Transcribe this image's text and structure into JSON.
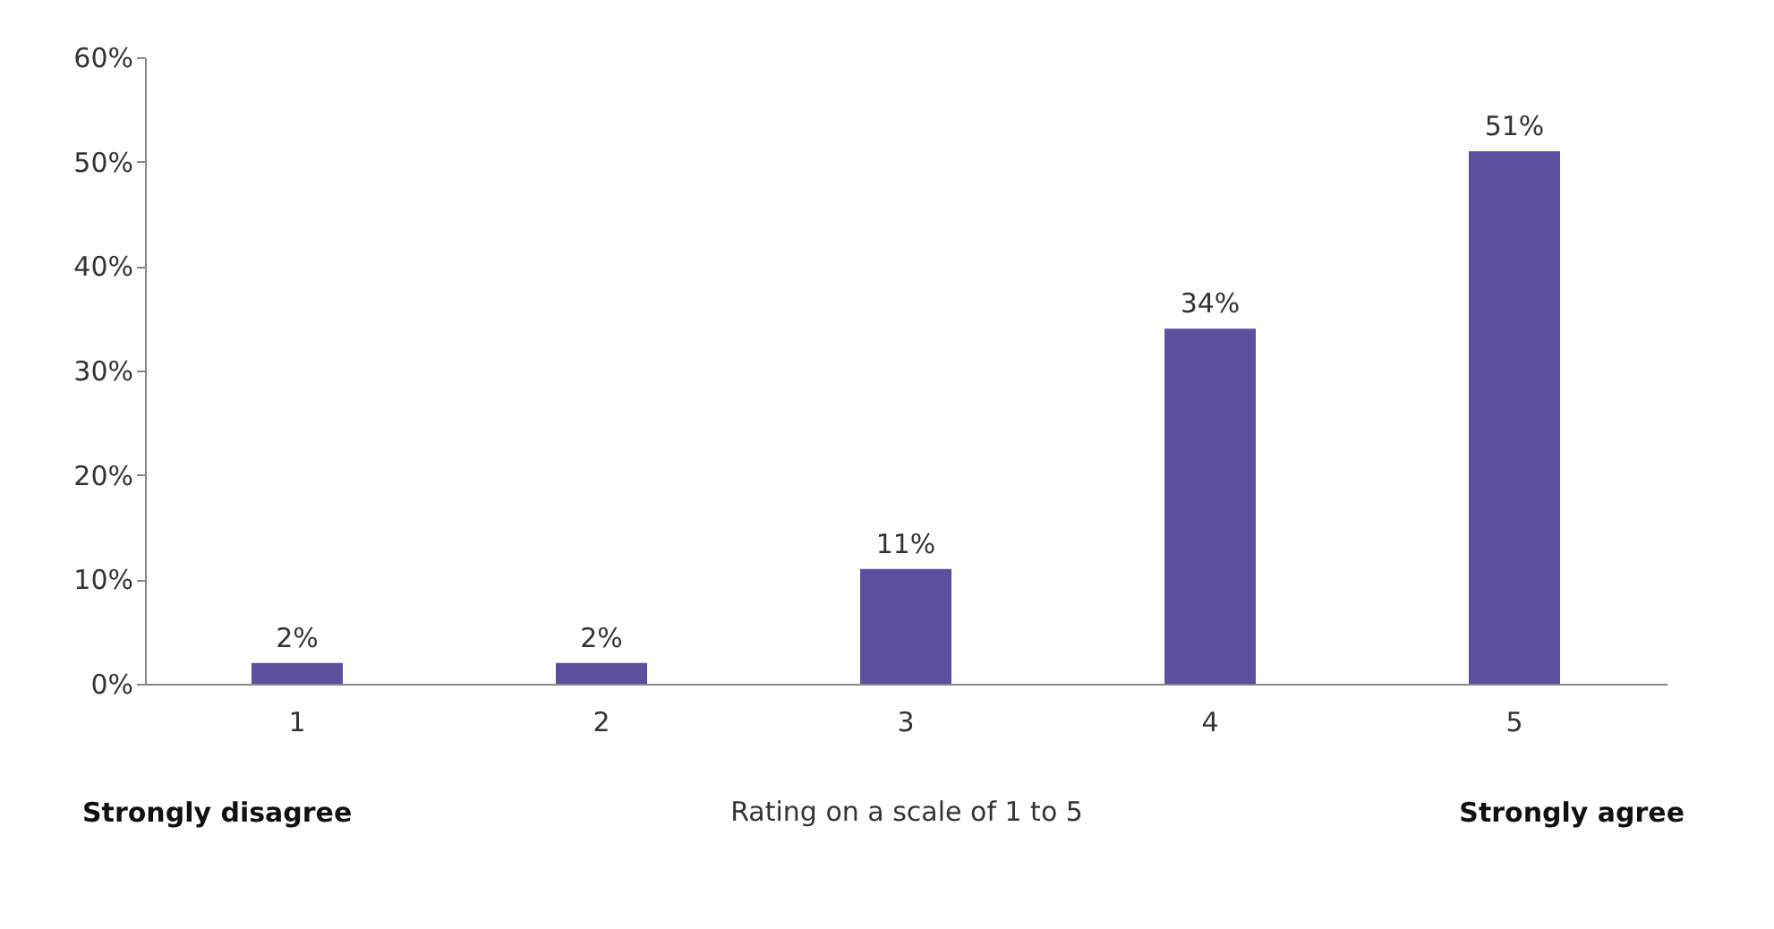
{
  "chart_data": {
    "type": "bar",
    "categories": [
      "1",
      "2",
      "3",
      "4",
      "5"
    ],
    "values": [
      2,
      2,
      11,
      34,
      51
    ],
    "value_labels": [
      "2%",
      "2%",
      "11%",
      "34%",
      "51%"
    ],
    "color": "#5b4f9e",
    "xlabel": "Rating on a scale of 1 to 5",
    "ylim": [
      0,
      60
    ],
    "yticks": [
      {
        "value": 0,
        "label": "0%"
      },
      {
        "value": 10,
        "label": "10%"
      },
      {
        "value": 20,
        "label": "20%"
      },
      {
        "value": 30,
        "label": "30%"
      },
      {
        "value": 40,
        "label": "40%"
      },
      {
        "value": 50,
        "label": "50%"
      },
      {
        "value": 60,
        "label": "60%"
      }
    ],
    "annotations": [
      "Strongly disagree",
      "Strongly agree"
    ]
  }
}
